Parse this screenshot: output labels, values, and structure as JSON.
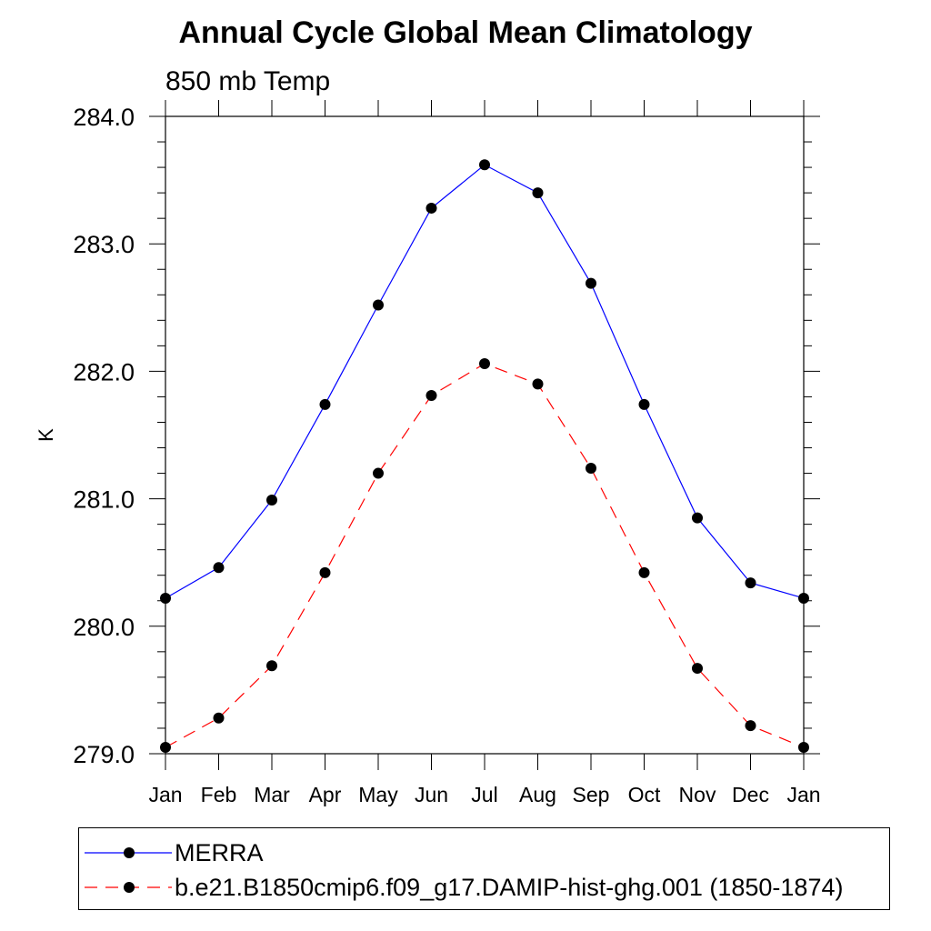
{
  "title": "Annual Cycle Global Mean Climatology",
  "subtitle": "850 mb Temp",
  "chart_data": {
    "type": "line",
    "title": "Annual Cycle Global Mean Climatology",
    "subtitle": "850 mb Temp",
    "ylabel": "K",
    "xlabel": "",
    "categories": [
      "Jan",
      "Feb",
      "Mar",
      "Apr",
      "May",
      "Jun",
      "Jul",
      "Aug",
      "Sep",
      "Oct",
      "Nov",
      "Dec",
      "Jan"
    ],
    "ylim": [
      279.0,
      284.0
    ],
    "yticks": [
      "279.0",
      "280.0",
      "281.0",
      "282.0",
      "283.0",
      "284.0"
    ],
    "legend_position": "bottom",
    "series": [
      {
        "name": "MERRA",
        "color": "#0000ff",
        "line_style": "solid",
        "marker": "filled-circle",
        "values": [
          280.22,
          280.46,
          280.99,
          281.74,
          282.52,
          283.28,
          283.62,
          283.4,
          282.69,
          281.74,
          280.85,
          280.34,
          280.22
        ]
      },
      {
        "name": "b.e21.B1850cmip6.f09_g17.DAMIP-hist-ghg.001 (1850-1874)",
        "color": "#ff0000",
        "line_style": "dashed",
        "marker": "filled-circle",
        "values": [
          279.05,
          279.28,
          279.69,
          280.42,
          281.2,
          281.81,
          282.06,
          281.9,
          281.24,
          280.42,
          279.67,
          279.22,
          279.05
        ]
      }
    ]
  }
}
